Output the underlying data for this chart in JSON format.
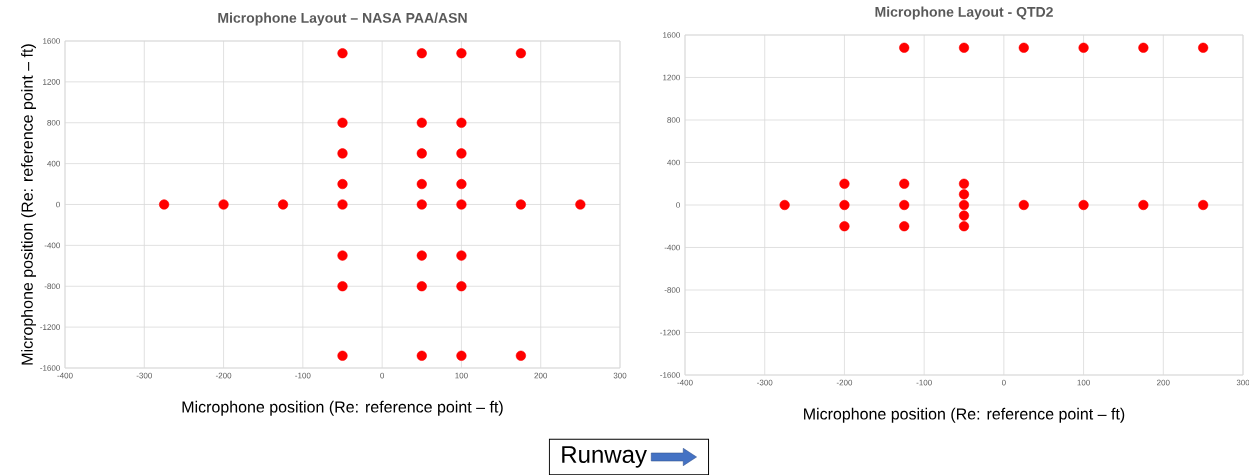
{
  "chart_data": [
    {
      "type": "scatter",
      "title": "Microphone Layout – NASA PAA/ASN",
      "xlabel": "Microphone position (Re: reference point – ft)",
      "ylabel": "Microphone position (Re: reference point – ft)",
      "series": [
        {
          "color": "#ff0000",
          "x": [
            -275,
            -200,
            -125,
            -50,
            -50,
            -50,
            -50,
            -50,
            -50,
            -50,
            -50,
            50,
            50,
            50,
            50,
            50,
            50,
            50,
            50,
            100,
            100,
            100,
            100,
            100,
            100,
            100,
            100,
            175,
            175,
            175,
            250
          ],
          "values": [
            0,
            0,
            0,
            1480,
            800,
            500,
            200,
            0,
            -500,
            -800,
            -1480,
            1480,
            800,
            500,
            200,
            0,
            -500,
            -800,
            -1480,
            1480,
            800,
            500,
            200,
            0,
            -500,
            -800,
            -1480,
            1480,
            0,
            -1480,
            0
          ]
        }
      ],
      "xlim": [
        -400,
        300
      ],
      "ylim": [
        -1600,
        1600
      ],
      "xticks": [
        -400,
        -300,
        -200,
        -100,
        0,
        100,
        200,
        300
      ],
      "yticks": [
        -1600,
        -1200,
        -800,
        -400,
        0,
        400,
        800,
        1200,
        1600
      ],
      "grid": true,
      "marker": "circle"
    },
    {
      "type": "scatter",
      "title": "Microphone Layout - QTD2",
      "xlabel": "Microphone position (Re: reference point – ft)",
      "series": [
        {
          "color": "#ff0000",
          "x": [
            -125,
            -50,
            25,
            100,
            175,
            250,
            -275,
            -200,
            -125,
            -50,
            25,
            100,
            175,
            250,
            -200,
            -200,
            -125,
            -125,
            -50,
            -50,
            -50,
            -50
          ],
          "values": [
            1480,
            1480,
            1480,
            1480,
            1480,
            1480,
            0,
            0,
            0,
            0,
            0,
            0,
            0,
            0,
            200,
            -200,
            200,
            -200,
            200,
            100,
            -100,
            -200
          ]
        }
      ],
      "xlim": [
        -400,
        300
      ],
      "ylim": [
        -1600,
        1600
      ],
      "xticks": [
        -400,
        -300,
        -200,
        -100,
        0,
        100,
        200,
        300
      ],
      "yticks": [
        -1600,
        -1200,
        -800,
        -400,
        0,
        400,
        800,
        1200,
        1600
      ],
      "grid": true,
      "marker": "circle"
    },
    {
      "type": "other",
      "annotations": [
        "Runway"
      ]
    }
  ]
}
